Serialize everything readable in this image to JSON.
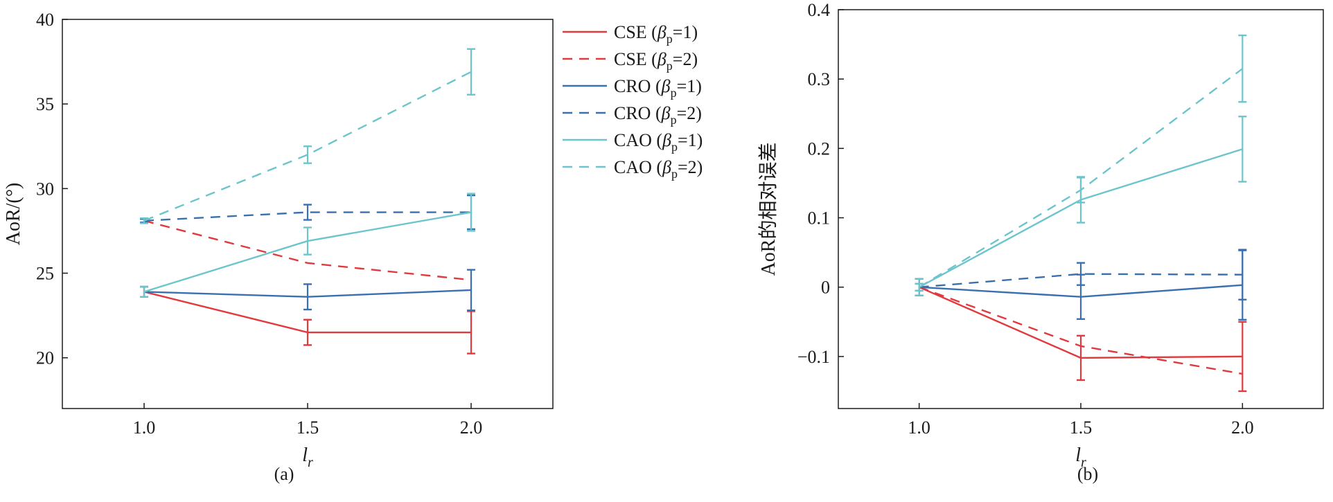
{
  "chart_data": [
    {
      "type": "line",
      "subtitle": "(a)",
      "ylabel": "AoR/(°)",
      "xlabel": {
        "main": "l",
        "sub": "r"
      },
      "x": [
        1.0,
        1.5,
        2.0
      ],
      "xticks": [
        "1.0",
        "1.5",
        "2.0"
      ],
      "xlim": [
        0.75,
        2.25
      ],
      "ylim": [
        17,
        40
      ],
      "yticks": [
        20,
        25,
        30,
        35,
        40
      ],
      "grid": false,
      "series": [
        {
          "key": "cse1",
          "values": [
            23.9,
            21.5,
            21.5
          ],
          "errors": [
            0.3,
            0.75,
            1.25
          ]
        },
        {
          "key": "cse2",
          "values": [
            28.1,
            25.6,
            24.6
          ],
          "errors": [
            0.0,
            0.0,
            0.0
          ]
        },
        {
          "key": "cro1",
          "values": [
            23.9,
            23.6,
            24.0
          ],
          "errors": [
            0.3,
            0.75,
            1.2
          ]
        },
        {
          "key": "cro2",
          "values": [
            28.1,
            28.6,
            28.6
          ],
          "errors": [
            0.1,
            0.45,
            1.0
          ]
        },
        {
          "key": "cao1",
          "values": [
            23.9,
            26.9,
            28.6
          ],
          "errors": [
            0.3,
            0.8,
            1.1
          ]
        },
        {
          "key": "cao2",
          "values": [
            28.1,
            32.0,
            36.9
          ],
          "errors": [
            0.15,
            0.5,
            1.35
          ]
        }
      ]
    },
    {
      "type": "line",
      "subtitle": "(b)",
      "ylabel": "AoR的相对误差",
      "xlabel": {
        "main": "l",
        "sub": "r"
      },
      "x": [
        1.0,
        1.5,
        2.0
      ],
      "xticks": [
        "1.0",
        "1.5",
        "2.0"
      ],
      "xlim": [
        0.75,
        2.25
      ],
      "ylim": [
        -0.175,
        0.4
      ],
      "yticks": [
        -0.1,
        0,
        0.1,
        0.2,
        0.3,
        0.4
      ],
      "yticklabels": [
        "−0.1",
        "0",
        "0.1",
        "0.2",
        "0.3",
        "0.4"
      ],
      "grid": false,
      "series": [
        {
          "key": "cse1",
          "values": [
            0.0,
            -0.102,
            -0.1
          ],
          "errors": [
            0.012,
            0.032,
            0.05
          ]
        },
        {
          "key": "cse2",
          "values": [
            0.0,
            -0.085,
            -0.125
          ],
          "errors": [
            0.0,
            0.0,
            0.0
          ]
        },
        {
          "key": "cro1",
          "values": [
            0.0,
            -0.014,
            0.003
          ],
          "errors": [
            0.012,
            0.032,
            0.05
          ]
        },
        {
          "key": "cro2",
          "values": [
            0.0,
            0.019,
            0.018
          ],
          "errors": [
            0.005,
            0.016,
            0.036
          ]
        },
        {
          "key": "cao1",
          "values": [
            0.0,
            0.126,
            0.199
          ],
          "errors": [
            0.012,
            0.033,
            0.047
          ]
        },
        {
          "key": "cao2",
          "values": [
            0.0,
            0.14,
            0.315
          ],
          "errors": [
            0.005,
            0.018,
            0.048
          ]
        }
      ]
    }
  ],
  "legend": {
    "placement": "right of panel (a)",
    "items": [
      {
        "key": "cse1",
        "name": "CSE",
        "beta_value": "1",
        "color": "#e03a3e",
        "dash": "solid"
      },
      {
        "key": "cse2",
        "name": "CSE",
        "beta_value": "2",
        "color": "#e03a3e",
        "dash": "dashed"
      },
      {
        "key": "cro1",
        "name": "CRO",
        "beta_value": "1",
        "color": "#3a6fb0",
        "dash": "solid"
      },
      {
        "key": "cro2",
        "name": "CRO",
        "beta_value": "2",
        "color": "#3a6fb0",
        "dash": "dashed"
      },
      {
        "key": "cao1",
        "name": "CAO",
        "beta_value": "1",
        "color": "#6cc5cc",
        "dash": "solid"
      },
      {
        "key": "cao2",
        "name": "CAO",
        "beta_value": "2",
        "color": "#6cc5cc",
        "dash": "dashed"
      }
    ]
  }
}
